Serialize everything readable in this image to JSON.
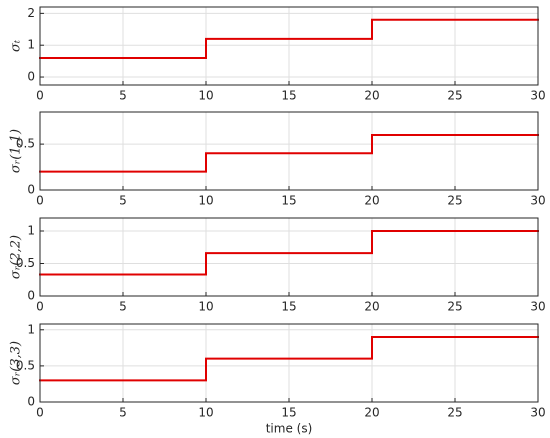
{
  "chart_data": [
    {
      "type": "step",
      "ylabel": "σₜ",
      "x": [
        0,
        10,
        20
      ],
      "values": [
        0.6,
        1.2,
        1.8
      ],
      "color": "#e00000",
      "xlim": [
        0,
        30
      ],
      "xticks": [
        0,
        5,
        10,
        15,
        20,
        25,
        30
      ],
      "ylim": [
        -0.25,
        2.2
      ],
      "yticks": [
        0,
        1,
        2
      ],
      "grid": true
    },
    {
      "type": "step",
      "ylabel": "σᵣ(1,1)",
      "x": [
        0,
        10,
        20
      ],
      "values": [
        0.2,
        0.4,
        0.6
      ],
      "color": "#e00000",
      "xlim": [
        0,
        30
      ],
      "xticks": [
        0,
        5,
        10,
        15,
        20,
        25,
        30
      ],
      "ylim": [
        0,
        0.85
      ],
      "yticks": [
        0,
        0.5
      ],
      "grid": true
    },
    {
      "type": "step",
      "ylabel": "σᵣ(2,2)",
      "x": [
        0,
        10,
        20
      ],
      "values": [
        0.33,
        0.66,
        1
      ],
      "color": "#e00000",
      "xlim": [
        0,
        30
      ],
      "xticks": [
        0,
        5,
        10,
        15,
        20,
        25,
        30
      ],
      "ylim": [
        0,
        1.2
      ],
      "yticks": [
        0,
        0.5,
        1
      ],
      "grid": true
    },
    {
      "type": "step",
      "ylabel": "σᵣ(3,3)",
      "x": [
        0,
        10,
        20
      ],
      "values": [
        0.3,
        0.6,
        0.9
      ],
      "color": "#e00000",
      "xlim": [
        0,
        30
      ],
      "xticks": [
        0,
        5,
        10,
        15,
        20,
        25,
        30
      ],
      "ylim": [
        0,
        1.08
      ],
      "yticks": [
        0,
        0.5,
        1
      ],
      "grid": true,
      "xlabel": "time (s)"
    }
  ]
}
